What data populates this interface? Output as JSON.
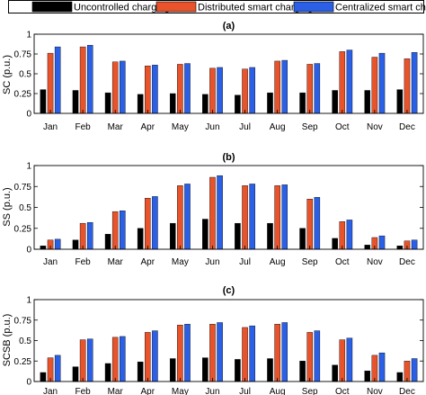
{
  "legend": [
    {
      "label": "Uncontrolled charging",
      "color": "#000000"
    },
    {
      "label": "Distributed smart charging",
      "color": "#e8532b"
    },
    {
      "label": "Centralized smart charging",
      "color": "#2a5fe6"
    }
  ],
  "chart_data": [
    {
      "type": "bar",
      "title": "(a)",
      "xlabel": "",
      "ylabel": "SC (p.u.)",
      "ylim": [
        0,
        1
      ],
      "yticks": [
        "0",
        "0.25",
        "0.5",
        "0.75",
        "1"
      ],
      "grid": false,
      "categories": [
        "Jan",
        "Feb",
        "Mar",
        "Apr",
        "May",
        "Jun",
        "Jul",
        "Aug",
        "Sep",
        "Oct",
        "Nov",
        "Dec"
      ],
      "series": [
        {
          "name": "Uncontrolled charging",
          "values": [
            0.3,
            0.29,
            0.26,
            0.24,
            0.25,
            0.24,
            0.23,
            0.26,
            0.26,
            0.29,
            0.29,
            0.3
          ]
        },
        {
          "name": "Distributed smart charging",
          "values": [
            0.76,
            0.84,
            0.65,
            0.6,
            0.62,
            0.57,
            0.56,
            0.66,
            0.62,
            0.78,
            0.71,
            0.69
          ]
        },
        {
          "name": "Centralized smart charging",
          "values": [
            0.84,
            0.86,
            0.66,
            0.61,
            0.63,
            0.58,
            0.58,
            0.67,
            0.63,
            0.8,
            0.76,
            0.77
          ]
        }
      ]
    },
    {
      "type": "bar",
      "title": "(b)",
      "xlabel": "",
      "ylabel": "SS (p.u.)",
      "ylim": [
        0,
        1
      ],
      "yticks": [
        "0",
        "0.25",
        "0.5",
        "0.75",
        "1"
      ],
      "grid": false,
      "categories": [
        "Jan",
        "Feb",
        "Mar",
        "Apr",
        "May",
        "Jun",
        "Jul",
        "Aug",
        "Sep",
        "Oct",
        "Nov",
        "Dec"
      ],
      "series": [
        {
          "name": "Uncontrolled charging",
          "values": [
            0.04,
            0.11,
            0.18,
            0.25,
            0.31,
            0.36,
            0.31,
            0.31,
            0.25,
            0.13,
            0.05,
            0.04
          ]
        },
        {
          "name": "Distributed smart charging",
          "values": [
            0.11,
            0.31,
            0.45,
            0.61,
            0.76,
            0.86,
            0.76,
            0.76,
            0.6,
            0.33,
            0.14,
            0.1
          ]
        },
        {
          "name": "Centralized smart charging",
          "values": [
            0.12,
            0.32,
            0.46,
            0.63,
            0.78,
            0.88,
            0.78,
            0.77,
            0.62,
            0.35,
            0.16,
            0.11
          ]
        }
      ]
    },
    {
      "type": "bar",
      "title": "(c)",
      "xlabel": "",
      "ylabel": "SCSB (p.u.)",
      "ylim": [
        0,
        1
      ],
      "yticks": [
        "0",
        "0.25",
        "0.5",
        "0.75",
        "1"
      ],
      "grid": false,
      "categories": [
        "Jan",
        "Feb",
        "Mar",
        "Apr",
        "May",
        "Jun",
        "Jul",
        "Aug",
        "Sep",
        "Oct",
        "Nov",
        "Dec"
      ],
      "series": [
        {
          "name": "Uncontrolled charging",
          "values": [
            0.11,
            0.18,
            0.22,
            0.24,
            0.28,
            0.29,
            0.27,
            0.28,
            0.25,
            0.2,
            0.13,
            0.11
          ]
        },
        {
          "name": "Distributed smart charging",
          "values": [
            0.29,
            0.51,
            0.54,
            0.6,
            0.69,
            0.7,
            0.66,
            0.7,
            0.6,
            0.51,
            0.32,
            0.25
          ]
        },
        {
          "name": "Centralized smart charging",
          "values": [
            0.32,
            0.52,
            0.55,
            0.62,
            0.7,
            0.72,
            0.68,
            0.72,
            0.62,
            0.53,
            0.35,
            0.28
          ]
        }
      ]
    }
  ]
}
